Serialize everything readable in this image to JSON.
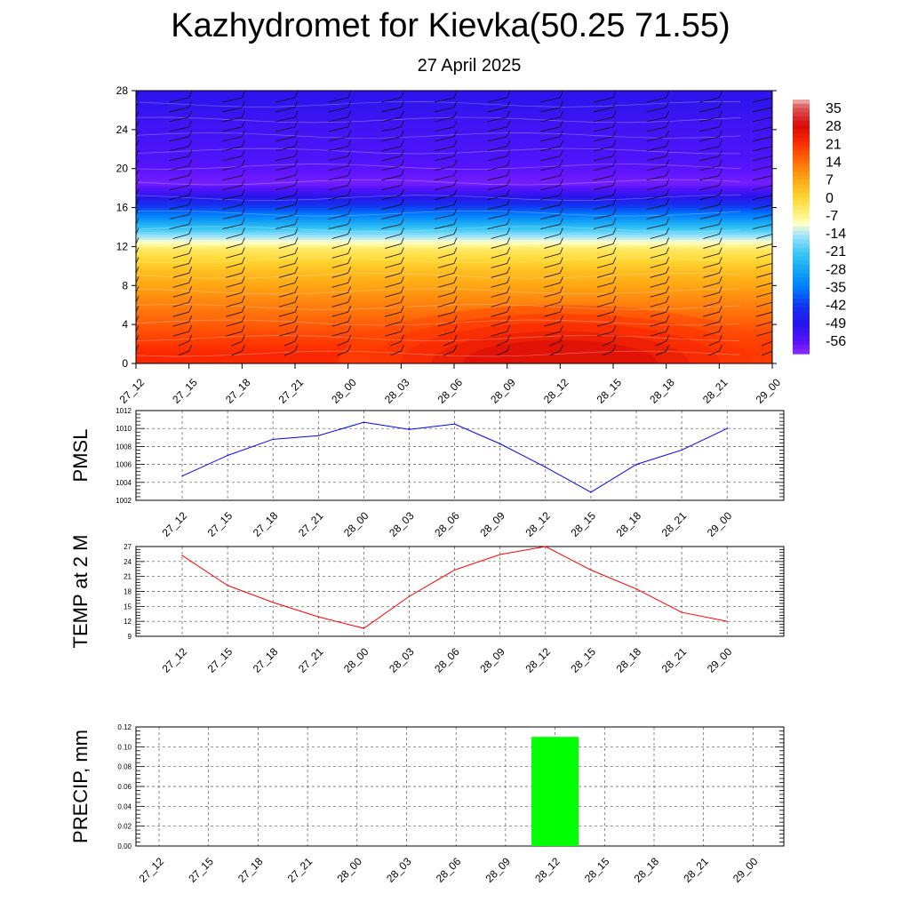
{
  "header": {
    "title": "Kazhydromet for Kievka(50.25 71.55)",
    "subtitle": "27 April 2025"
  },
  "chart_data": [
    {
      "type": "heatmap",
      "name": "temperature-cross-section",
      "title": "",
      "y_ticks": [
        "0",
        "4",
        "8",
        "12",
        "16",
        "20",
        "24",
        "28"
      ],
      "ylim": [
        0,
        28
      ],
      "x_ticks": [
        "27_12",
        "27_15",
        "27_18",
        "27_21",
        "28_00",
        "28_03",
        "28_06",
        "28_09",
        "28_12",
        "28_15",
        "28_18",
        "28_21",
        "29_00"
      ],
      "colorbar_labels": [
        "35",
        "28",
        "21",
        "14",
        "7",
        "0",
        "-7",
        "-14",
        "-21",
        "-28",
        "-35",
        "-42",
        "-49",
        "-56"
      ],
      "colorbar_range": [
        -60,
        38
      ],
      "bands": [
        {
          "y_from": 0,
          "y_to": 2,
          "value": 22
        },
        {
          "y_from": 2,
          "y_to": 5,
          "value": 17
        },
        {
          "y_from": 5,
          "y_to": 8,
          "value": 11
        },
        {
          "y_from": 8,
          "y_to": 11,
          "value": 4
        },
        {
          "y_from": 11,
          "y_to": 12.5,
          "value": -4
        },
        {
          "y_from": 12.5,
          "y_to": 14,
          "value": -16
        },
        {
          "y_from": 14,
          "y_to": 16,
          "value": -32
        },
        {
          "y_from": 16,
          "y_to": 18,
          "value": -48
        },
        {
          "y_from": 18,
          "y_to": 19,
          "value": -58
        },
        {
          "y_from": 19,
          "y_to": 23,
          "value": -54
        },
        {
          "y_from": 23,
          "y_to": 26,
          "value": -52
        },
        {
          "y_from": 26,
          "y_to": 28,
          "value": -50
        }
      ],
      "warm_core": {
        "x_category": "28_12",
        "y_max": 6,
        "value": 28
      },
      "wind_barbs": true,
      "grid": false
    },
    {
      "type": "line",
      "name": "pmsl",
      "ylabel": "PMSL",
      "categories": [
        "27_12",
        "27_15",
        "27_18",
        "27_21",
        "28_00",
        "28_03",
        "28_06",
        "28_09",
        "28_12",
        "28_15",
        "28_18",
        "28_21",
        "29_00"
      ],
      "values": [
        1004.7,
        1007.0,
        1008.8,
        1009.2,
        1010.7,
        1009.9,
        1010.5,
        1008.3,
        1005.7,
        1002.9,
        1006.0,
        1007.6,
        1010.0
      ],
      "y_ticks": [
        "1002",
        "1004",
        "1006",
        "1008",
        "1010",
        "1012"
      ],
      "ylim": [
        1002,
        1012
      ],
      "color": "#0000ff",
      "grid": true
    },
    {
      "type": "line",
      "name": "temp-2m",
      "ylabel": "TEMP at 2 M",
      "categories": [
        "27_12",
        "27_15",
        "27_18",
        "27_21",
        "28_00",
        "28_03",
        "28_06",
        "28_09",
        "28_12",
        "28_15",
        "28_18",
        "28_21",
        "29_00"
      ],
      "values": [
        25.2,
        19.2,
        15.8,
        12.9,
        10.6,
        17.0,
        22.3,
        25.4,
        27.0,
        22.3,
        18.5,
        13.8,
        12.0
      ],
      "y_ticks": [
        "9",
        "12",
        "15",
        "18",
        "21",
        "24",
        "27"
      ],
      "ylim": [
        9,
        27
      ],
      "color": "#ff0000",
      "grid": true
    },
    {
      "type": "bar",
      "name": "precip",
      "ylabel": "PRECIP, mm",
      "categories": [
        "27_12",
        "27_15",
        "27_18",
        "27_21",
        "28_00",
        "28_03",
        "28_06",
        "28_09",
        "28_12",
        "28_15",
        "28_18",
        "28_21",
        "29_00"
      ],
      "values": [
        0,
        0,
        0,
        0,
        0,
        0,
        0,
        0,
        0.11,
        0,
        0,
        0,
        0
      ],
      "y_ticks": [
        "0.00",
        "0.02",
        "0.04",
        "0.06",
        "0.08",
        "0.10",
        "0.12"
      ],
      "ylim": [
        0,
        0.12
      ],
      "color": "#00ff00",
      "grid": true
    }
  ]
}
